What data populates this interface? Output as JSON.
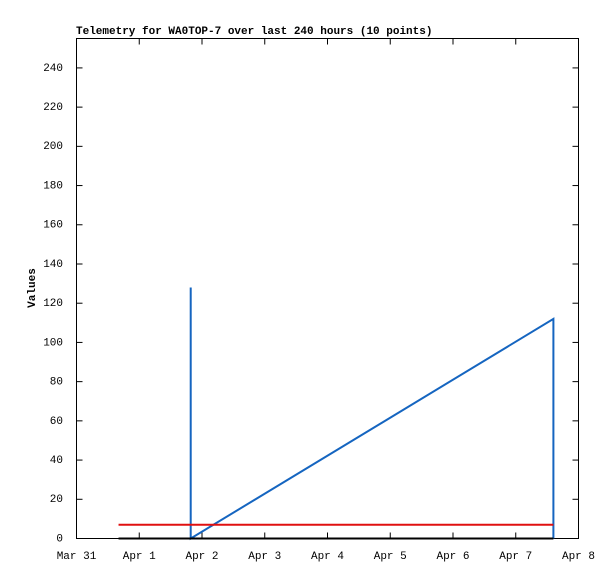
{
  "chart_data": {
    "type": "line",
    "title": "Telemetry for WA0TOP-7 over last 240 hours (10 points)",
    "y_label": "Values",
    "xlim": [
      0,
      8
    ],
    "xticks": [
      {
        "value": 0,
        "label": "Mar 31"
      },
      {
        "value": 1,
        "label": "Apr 1"
      },
      {
        "value": 2,
        "label": "Apr 2"
      },
      {
        "value": 3,
        "label": "Apr 3"
      },
      {
        "value": 4,
        "label": "Apr 4"
      },
      {
        "value": 5,
        "label": "Apr 5"
      },
      {
        "value": 6,
        "label": "Apr 6"
      },
      {
        "value": 7,
        "label": "Apr 7"
      },
      {
        "value": 8,
        "label": "Apr 8"
      }
    ],
    "ylim": [
      0,
      255
    ],
    "yticks": [
      0,
      20,
      40,
      60,
      80,
      100,
      120,
      140,
      160,
      180,
      200,
      220,
      240
    ],
    "series": [
      {
        "color": "#1565c0",
        "x": [
          1.82,
          1.82,
          7.6,
          7.6
        ],
        "values": [
          128,
          0,
          112,
          0
        ]
      },
      {
        "color": "#e01010",
        "x": [
          0.67,
          7.6
        ],
        "values": [
          7,
          7
        ]
      },
      {
        "color": "#000000",
        "x": [
          0.67,
          7.6
        ],
        "values": [
          0,
          0
        ]
      }
    ]
  }
}
